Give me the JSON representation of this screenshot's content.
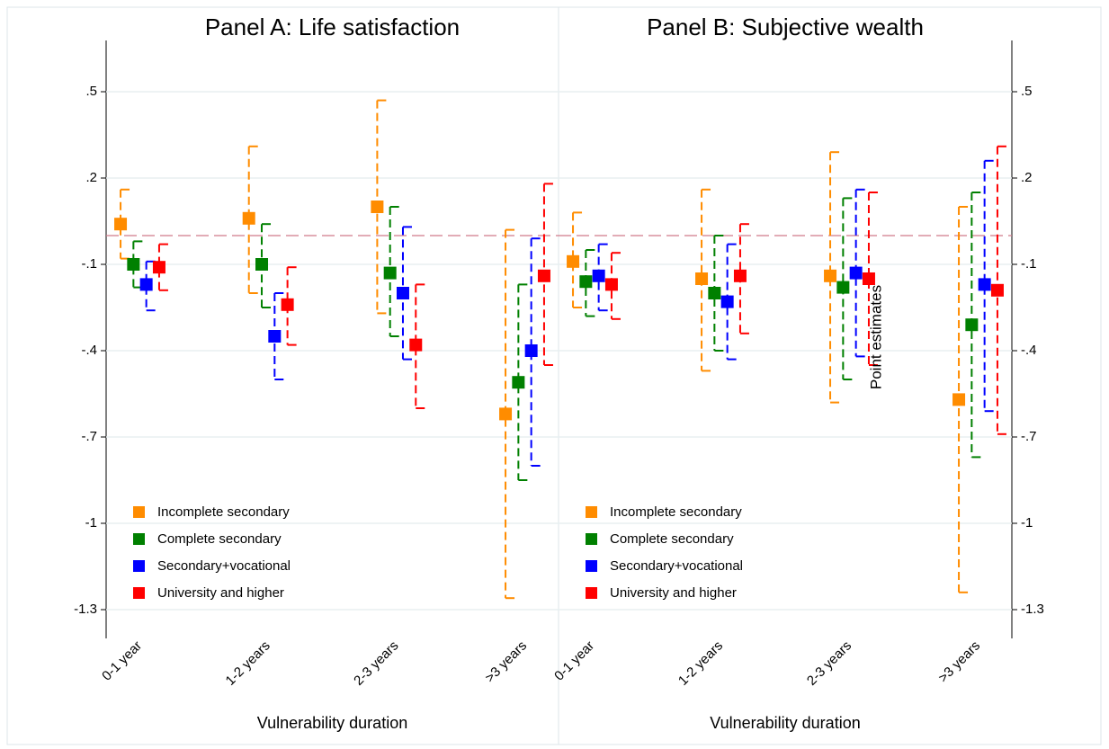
{
  "chart_data": [
    {
      "type": "errorbar",
      "title": "Panel A: Life satisfaction",
      "xlabel": "Vulnerability duration",
      "categories": [
        "0-1 year",
        "1-2 years",
        "2-3 years",
        ">3 years"
      ],
      "ylim": [
        -1.4,
        0.7
      ],
      "yaxis_side": "left",
      "grid": true,
      "hline": 0,
      "legend": "lower left",
      "yticks": [
        {
          "value": 0.5,
          "label": ".5"
        },
        {
          "value": 0.2,
          "label": ".2"
        },
        {
          "value": -0.1,
          "label": "-.1"
        },
        {
          "value": -0.4,
          "label": "-.4"
        },
        {
          "value": -0.7,
          "label": "-.7"
        },
        -1,
        {
          "value": -1.3,
          "label": "-1.3"
        }
      ],
      "series": [
        {
          "name": "Incomplete secondary",
          "color": "#ff8c00",
          "values": [
            0.04,
            0.06,
            0.1,
            -0.62
          ],
          "lower": [
            -0.08,
            -0.2,
            -0.27,
            -1.26
          ],
          "upper": [
            0.16,
            0.31,
            0.47,
            0.02
          ]
        },
        {
          "name": "Complete secondary",
          "color": "#008000",
          "values": [
            -0.1,
            -0.1,
            -0.13,
            -0.51
          ],
          "lower": [
            -0.18,
            -0.25,
            -0.35,
            -0.85
          ],
          "upper": [
            -0.02,
            0.04,
            0.1,
            -0.17
          ]
        },
        {
          "name": "Secondary+vocational",
          "color": "#0000ff",
          "values": [
            -0.17,
            -0.35,
            -0.2,
            -0.4
          ],
          "lower": [
            -0.26,
            -0.5,
            -0.43,
            -0.8
          ],
          "upper": [
            -0.09,
            -0.2,
            0.03,
            -0.01
          ]
        },
        {
          "name": "University and higher",
          "color": "#ff0000",
          "values": [
            -0.11,
            -0.24,
            -0.38,
            -0.14
          ],
          "lower": [
            -0.19,
            -0.38,
            -0.6,
            -0.45
          ],
          "upper": [
            -0.03,
            -0.11,
            -0.17,
            0.18
          ]
        }
      ]
    },
    {
      "type": "errorbar",
      "title": "Panel B: Subjective wealth",
      "xlabel": "Vulnerability duration",
      "categories": [
        "0-1 year",
        "1-2 years",
        "2-3 years",
        ">3 years"
      ],
      "ylim": [
        -1.4,
        0.7
      ],
      "yaxis_side": "right",
      "grid": true,
      "hline": 0,
      "legend": "lower left",
      "annotation": "Point estimates",
      "yticks": [
        {
          "value": 0.5,
          "label": ".5"
        },
        {
          "value": 0.2,
          "label": ".2"
        },
        {
          "value": -0.1,
          "label": "-.1"
        },
        {
          "value": -0.4,
          "label": "-.4"
        },
        {
          "value": -0.7,
          "label": "-.7"
        },
        -1,
        {
          "value": -1.3,
          "label": "-1.3"
        }
      ],
      "series": [
        {
          "name": "Incomplete secondary",
          "color": "#ff8c00",
          "values": [
            -0.09,
            -0.15,
            -0.14,
            -0.57
          ],
          "lower": [
            -0.25,
            -0.47,
            -0.58,
            -1.24
          ],
          "upper": [
            0.08,
            0.16,
            0.29,
            0.1
          ]
        },
        {
          "name": "Complete secondary",
          "color": "#008000",
          "values": [
            -0.16,
            -0.2,
            -0.18,
            -0.31
          ],
          "lower": [
            -0.28,
            -0.4,
            -0.5,
            -0.77
          ],
          "upper": [
            -0.05,
            0,
            0.13,
            0.15
          ]
        },
        {
          "name": "Secondary+vocational",
          "color": "#0000ff",
          "values": [
            -0.14,
            -0.23,
            -0.13,
            -0.17
          ],
          "lower": [
            -0.26,
            -0.43,
            -0.42,
            -0.61
          ],
          "upper": [
            -0.03,
            -0.03,
            0.16,
            0.26
          ]
        },
        {
          "name": "University and higher",
          "color": "#ff0000",
          "values": [
            -0.17,
            -0.14,
            -0.15,
            -0.19
          ],
          "lower": [
            -0.29,
            -0.34,
            -0.45,
            -0.69
          ],
          "upper": [
            -0.06,
            0.04,
            0.15,
            0.31
          ]
        }
      ]
    }
  ]
}
